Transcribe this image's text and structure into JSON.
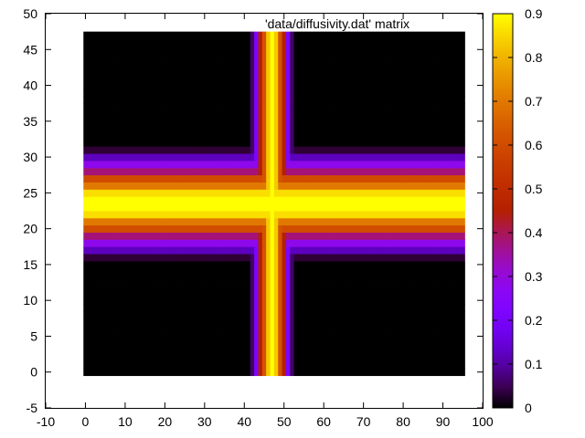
{
  "chart_data": {
    "type": "heatmap",
    "title": "'data/diffusivity.dat' matrix",
    "xlabel": "",
    "ylabel": "",
    "xlim": [
      -10,
      100
    ],
    "ylim": [
      -5,
      50
    ],
    "x_ticks": [
      "-10",
      "0",
      "10",
      "20",
      "30",
      "40",
      "50",
      "60",
      "70",
      "80",
      "90",
      "100"
    ],
    "y_ticks": [
      "-5",
      "0",
      "5",
      "10",
      "15",
      "20",
      "25",
      "30",
      "35",
      "40",
      "45",
      "50"
    ],
    "colorbar": {
      "range": [
        0,
        0.9
      ],
      "ticks": [
        "0",
        "0.1",
        "0.2",
        "0.3",
        "0.4",
        "0.5",
        "0.6",
        "0.7",
        "0.8",
        "0.9"
      ],
      "palette": "black-blue-purple-red-orange-yellow"
    },
    "grid": {
      "x_range": [
        0,
        95
      ],
      "y_range": [
        0,
        47
      ],
      "vertical_band": {
        "center_x": 47,
        "columns": [
          {
            "x": 42,
            "value": 0.06
          },
          {
            "x": 43,
            "value": 0.22
          },
          {
            "x": 44,
            "value": 0.45
          },
          {
            "x": 45,
            "value": 0.62
          },
          {
            "x": 46,
            "value": 0.83
          },
          {
            "x": 47,
            "value": 0.9
          },
          {
            "x": 48,
            "value": 0.83
          },
          {
            "x": 49,
            "value": 0.62
          },
          {
            "x": 50,
            "value": 0.45
          },
          {
            "x": 51,
            "value": 0.22
          },
          {
            "x": 52,
            "value": 0.06
          }
        ]
      },
      "horizontal_band": {
        "center_y": 23.5,
        "rows": [
          {
            "y": 31,
            "value": 0.03
          },
          {
            "y": 30,
            "value": 0.12
          },
          {
            "y": 29,
            "value": 0.28
          },
          {
            "y": 28,
            "value": 0.38
          },
          {
            "y": 27,
            "value": 0.6
          },
          {
            "y": 26,
            "value": 0.7
          },
          {
            "y": 25,
            "value": 0.86
          },
          {
            "y": 24,
            "value": 0.9
          },
          {
            "y": 23,
            "value": 0.9
          },
          {
            "y": 22,
            "value": 0.86
          },
          {
            "y": 21,
            "value": 0.7
          },
          {
            "y": 20,
            "value": 0.6
          },
          {
            "y": 19,
            "value": 0.38
          },
          {
            "y": 18,
            "value": 0.28
          },
          {
            "y": 17,
            "value": 0.12
          },
          {
            "y": 16,
            "value": 0.03
          }
        ]
      }
    }
  }
}
